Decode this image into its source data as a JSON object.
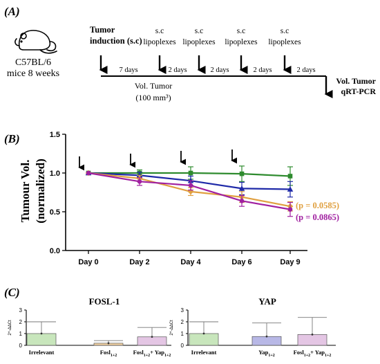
{
  "panel_a": {
    "label": "(A)",
    "mouse_icon": "mouse-icon",
    "strain": "C57BL/6",
    "age": "mice 8 weeks",
    "events": [
      {
        "line1": "Tumor",
        "line2": "induction (s.c)",
        "bold": true
      },
      {
        "line1": "s.c",
        "line2": "lipoplexes",
        "bold": false
      },
      {
        "line1": "s.c",
        "line2": "lipoplexes",
        "bold": false
      },
      {
        "line1": "s.c",
        "line2": "lipoplexes",
        "bold": false
      },
      {
        "line1": "s.c",
        "line2": "lipoplexes",
        "bold": false
      }
    ],
    "intervals": [
      "7 days",
      "2 days",
      "2 days",
      "2 days",
      "2 days"
    ],
    "vol_label": "Vol. Tumor",
    "vol_value": "(100 mm³)",
    "end_line1": "Vol. Tumor",
    "end_line2": "qRT-PCR"
  },
  "chart_data": [
    {
      "type": "line",
      "panel_label": "(B)",
      "ylabel_line1": "Tumour Vol.",
      "ylabel_line2": "(normalized)",
      "categories": [
        "Day 0",
        "Day 2",
        "Day 4",
        "Day 6",
        "Day 9"
      ],
      "yticks": [
        "0.0",
        "0.5",
        "1.0",
        "1.5"
      ],
      "ylim": [
        0,
        1.5
      ],
      "injection_arrows_at": [
        "Day 0",
        "Day 2",
        "Day 4",
        "Day 6"
      ],
      "series": [
        {
          "color": "#2e8b2e",
          "marker": "square",
          "values": [
            1.0,
            1.0,
            1.0,
            0.99,
            0.96
          ],
          "err": [
            0,
            0.04,
            0.08,
            0.1,
            0.12
          ]
        },
        {
          "color": "#1f2aa8",
          "marker": "triangle",
          "values": [
            1.0,
            0.97,
            0.9,
            0.8,
            0.79
          ],
          "err": [
            0,
            0.04,
            0.06,
            0.08,
            0.1
          ]
        },
        {
          "color": "#e0a040",
          "marker": "diamond",
          "values": [
            1.0,
            0.93,
            0.76,
            0.69,
            0.57
          ],
          "err": [
            0,
            0.04,
            0.05,
            0.07,
            0.06
          ]
        },
        {
          "color": "#a020a0",
          "marker": "circle",
          "values": [
            1.0,
            0.89,
            0.84,
            0.64,
            0.53
          ],
          "err": [
            0,
            0.05,
            0.06,
            0.07,
            0.09
          ]
        }
      ],
      "annotations": [
        {
          "text": "(p = 0.0585)",
          "color": "#e0a040"
        },
        {
          "text": "(p = 0.0865)",
          "color": "#a020a0"
        }
      ]
    },
    {
      "type": "bar",
      "panel_label": "(C)",
      "title": "FOSL-1",
      "ylabel": "2^-ΔΔCt",
      "yticks": [
        "0",
        "1",
        "2",
        "3"
      ],
      "ylim": [
        0,
        3
      ],
      "categories": [
        {
          "main": "Irrelevant",
          "sub1": "",
          "mid": "",
          "sub2": ""
        },
        {
          "main": "Fosl",
          "sub1": "1+2",
          "mid": "",
          "sub2": ""
        },
        {
          "main": "Fosl",
          "sub1": "1+2",
          "mid": "+ Yap",
          "sub2": "1+2"
        }
      ],
      "values": [
        1.0,
        0.18,
        0.72
      ],
      "err": [
        1.0,
        0.22,
        0.8
      ],
      "colors": [
        "#c8e6bc",
        "#f3d3a3",
        "#e4c6e4"
      ]
    },
    {
      "type": "bar",
      "title": "YAP",
      "ylabel": "2^-ΔΔCt",
      "yticks": [
        "0",
        "1",
        "2",
        "3"
      ],
      "ylim": [
        0,
        3
      ],
      "categories": [
        {
          "main": "Irrelevant",
          "sub1": "",
          "mid": "",
          "sub2": ""
        },
        {
          "main": "Yap",
          "sub1": "1+2",
          "mid": "",
          "sub2": ""
        },
        {
          "main": "Fosl",
          "sub1": "1+2",
          "mid": "+ Yap",
          "sub2": "1+2"
        }
      ],
      "values": [
        1.0,
        0.75,
        0.92
      ],
      "err": [
        1.0,
        1.15,
        1.45
      ],
      "colors": [
        "#c8e6bc",
        "#b8b8e6",
        "#e4c6e4"
      ]
    }
  ]
}
